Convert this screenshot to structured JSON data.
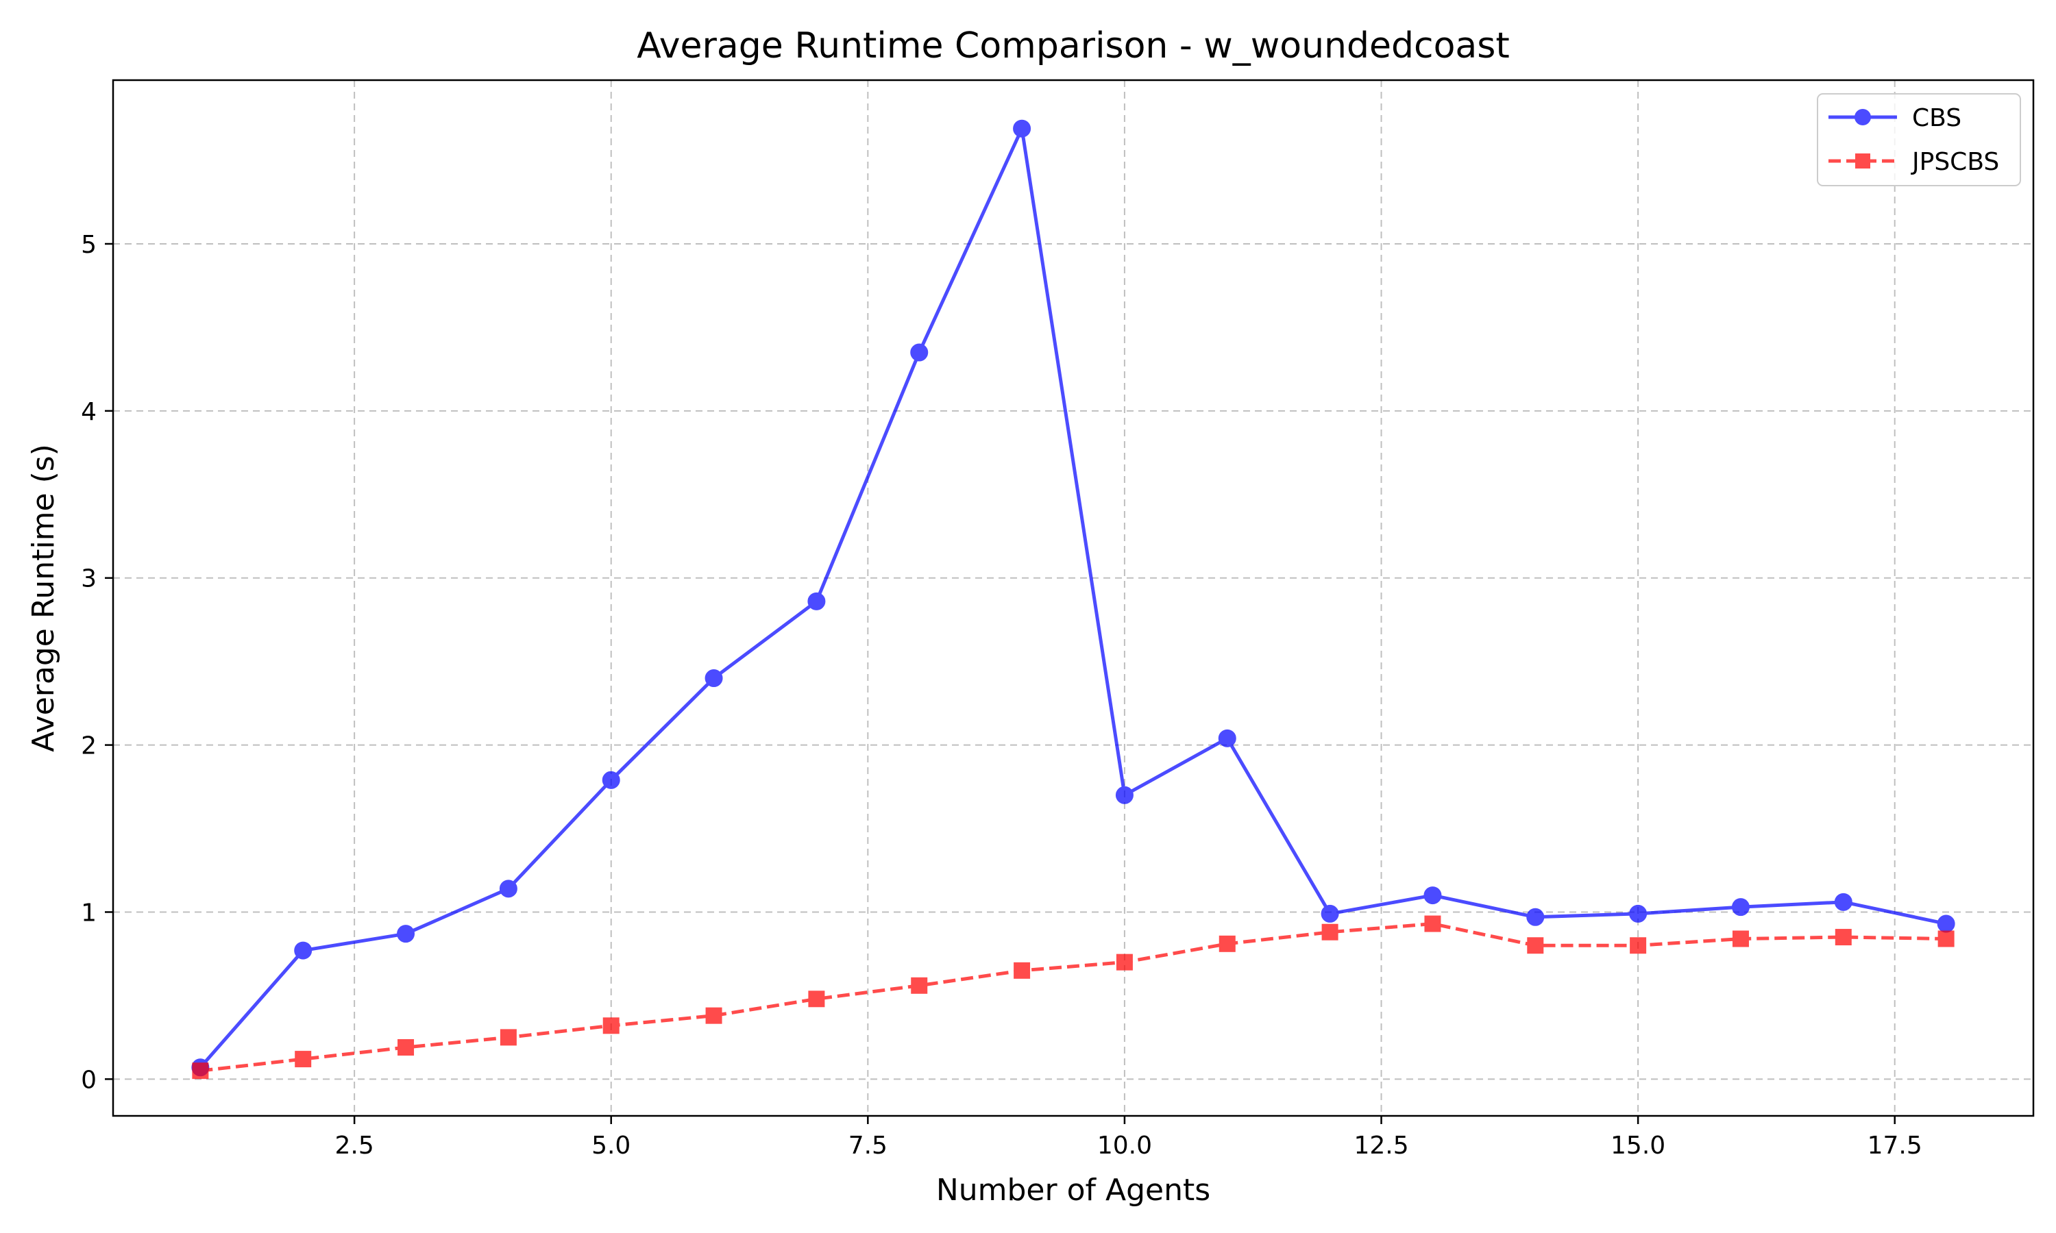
{
  "chart_data": {
    "type": "line",
    "title": "Average Runtime Comparison - w_woundedcoast",
    "xlabel": "Number of Agents",
    "ylabel": "Average Runtime (s)",
    "xlim": [
      0.15,
      18.85
    ],
    "ylim": [
      -0.22,
      5.98
    ],
    "xticks": [
      2.5,
      5.0,
      7.5,
      10.0,
      12.5,
      15.0,
      17.5
    ],
    "xtick_labels": [
      "2.5",
      "5.0",
      "7.5",
      "10.0",
      "12.5",
      "15.0",
      "17.5"
    ],
    "yticks": [
      0,
      1,
      2,
      3,
      4,
      5
    ],
    "ytick_labels": [
      "0",
      "1",
      "2",
      "3",
      "4",
      "5"
    ],
    "grid": true,
    "legend_position": "top-right",
    "x": [
      1,
      2,
      3,
      4,
      5,
      6,
      7,
      8,
      9,
      10,
      11,
      12,
      13,
      14,
      15,
      16,
      17,
      18
    ],
    "series": [
      {
        "name": "CBS",
        "color": "#0000ff",
        "marker": "circle",
        "linestyle": "solid",
        "values": [
          0.07,
          0.77,
          0.87,
          1.14,
          1.79,
          2.4,
          2.86,
          4.35,
          5.69,
          1.7,
          2.04,
          0.99,
          1.1,
          0.97,
          0.99,
          1.03,
          1.06,
          0.93
        ]
      },
      {
        "name": "JPSCBS",
        "color": "#ff0000",
        "marker": "square",
        "linestyle": "dashed",
        "values": [
          0.05,
          0.12,
          0.19,
          0.25,
          0.32,
          0.38,
          0.48,
          0.56,
          0.65,
          0.7,
          0.81,
          0.88,
          0.93,
          0.8,
          0.8,
          0.84,
          0.85,
          0.84
        ]
      }
    ]
  }
}
